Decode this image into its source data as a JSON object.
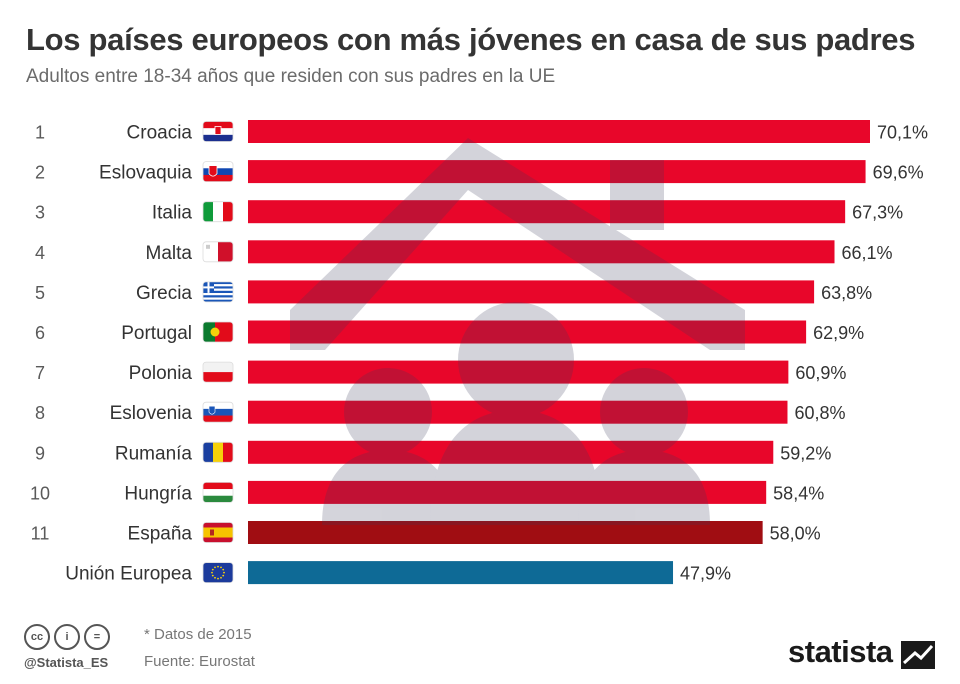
{
  "header": {
    "title": "Los países europeos con más jóvenes en casa de sus padres",
    "subtitle": "Adultos entre 18-34 años que residen con sus padres en la UE"
  },
  "chart_data": {
    "type": "bar",
    "orientation": "horizontal",
    "ranks": [
      "1",
      "2",
      "3",
      "4",
      "5",
      "6",
      "7",
      "8",
      "9",
      "10",
      "11",
      ""
    ],
    "categories": [
      "Croacia",
      "Eslovaquia",
      "Italia",
      "Malta",
      "Grecia",
      "Portugal",
      "Polonia",
      "Eslovenia",
      "Rumanía",
      "Hungría",
      "España",
      "Unión Europea"
    ],
    "values": [
      70.1,
      69.6,
      67.3,
      66.1,
      63.8,
      62.9,
      60.9,
      60.8,
      59.2,
      58.4,
      58.0,
      47.9
    ],
    "value_labels": [
      "70,1%",
      "69,6%",
      "67,3%",
      "66,1%",
      "63,8%",
      "62,9%",
      "60,9%",
      "60,8%",
      "59,2%",
      "58,4%",
      "58,0%",
      "47,9%"
    ],
    "flags": [
      "croatia-flag",
      "slovakia-flag",
      "italy-flag",
      "malta-flag",
      "greece-flag",
      "portugal-flag",
      "poland-flag",
      "slovenia-flag",
      "romania-flag",
      "hungary-flag",
      "spain-flag",
      "eu-flag"
    ],
    "bar_colors": [
      "#e8062a",
      "#e8062a",
      "#e8062a",
      "#e8062a",
      "#e8062a",
      "#e8062a",
      "#e8062a",
      "#e8062a",
      "#e8062a",
      "#e8062a",
      "#a00d12",
      "#0e6a96"
    ],
    "xlim": [
      0,
      70.1
    ],
    "grid": false,
    "legend": "none",
    "background_icon": "house-family-icon"
  },
  "footer": {
    "note": "* Datos de 2015",
    "source": "Fuente: Eurostat",
    "handle": "@Statista_ES",
    "brand": "statista",
    "license_icons": [
      "cc-icon",
      "attribution-icon",
      "no-derivatives-icon"
    ],
    "license_glyphs": [
      "cc",
      "i",
      "="
    ]
  }
}
